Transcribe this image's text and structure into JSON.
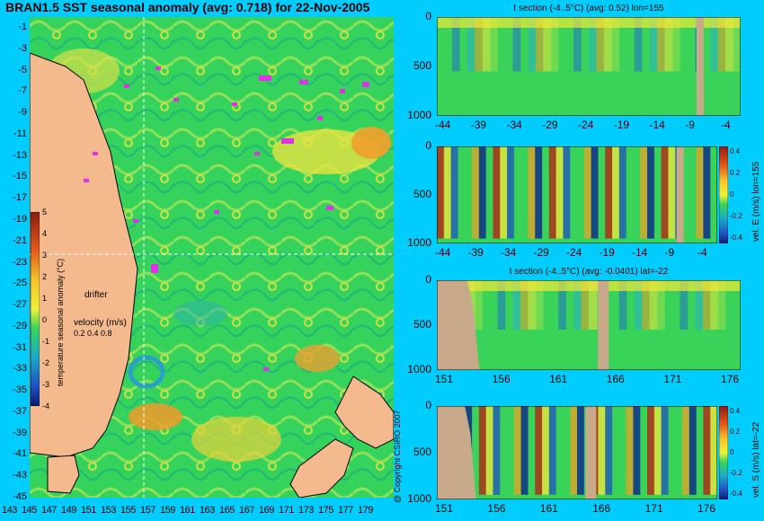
{
  "main_title": "BRAN1.5 SST seasonal anomaly (avg: 0.718) for 22-Nov-2005",
  "copyright": "@ Copyright CSIRO 2007",
  "map": {
    "lat_ticks": [
      "-1",
      "-3",
      "-5",
      "-7",
      "-9",
      "-11",
      "-13",
      "-15",
      "-17",
      "-19",
      "-21",
      "-23",
      "-25",
      "-27",
      "-29",
      "-31",
      "-33",
      "-35",
      "-37",
      "-39",
      "-41",
      "-43",
      "-45"
    ],
    "lon_ticks": [
      "143",
      "145",
      "147",
      "149",
      "151",
      "153",
      "155",
      "157",
      "159",
      "161",
      "163",
      "165",
      "167",
      "169",
      "171",
      "173",
      "175",
      "177",
      "179"
    ],
    "colorbar_label": "temperature seasonal anomaly (°C)",
    "colorbar_ticks": [
      "5",
      "4",
      "3",
      "2",
      "1",
      "0",
      "-1",
      "-2",
      "-3",
      "-4"
    ],
    "drifter_label": "drifter",
    "velocity_label": "velocity (m/s)",
    "velocity_scale": "0.2 0.4 0.8",
    "colors": {
      "land": "#f4b98c",
      "ocean": "#2fd35a",
      "warm": "#f3e63a",
      "hot": "#e77f1f",
      "cool": "#2aa0c8",
      "drifter": "#e030e8"
    }
  },
  "panels": [
    {
      "title": "t section (-4..5°C) (avg: 0.52) lon=155",
      "x_ticks": [
        "-44",
        "-39",
        "-34",
        "-29",
        "-24",
        "-19",
        "-14",
        "-9",
        "-4"
      ],
      "y_ticks": [
        "0",
        "500",
        "1000"
      ]
    },
    {
      "title": "",
      "side_label": "vel. E (m/s) lon=155",
      "x_ticks": [
        "-44",
        "-39",
        "-34",
        "-29",
        "-24",
        "-19",
        "-14",
        "-9",
        "-4"
      ],
      "y_ticks": [
        "0",
        "500",
        "1000"
      ],
      "cb_ticks": [
        "0.4",
        "0.2",
        "0",
        "-0.2",
        "-0.4"
      ]
    },
    {
      "title": "t section (-4..5°C) (avg: -0.0401) lat=-22",
      "x_ticks": [
        "151",
        "156",
        "161",
        "166",
        "171",
        "176"
      ],
      "y_ticks": [
        "0",
        "500",
        "1000"
      ]
    },
    {
      "title": "",
      "side_label": "vel. S (m/s) lat=-22",
      "x_ticks": [
        "151",
        "156",
        "161",
        "166",
        "171",
        "176"
      ],
      "y_ticks": [
        "0",
        "500",
        "1000"
      ],
      "cb_ticks": [
        "0.4",
        "0.2",
        "0",
        "-0.2",
        "-0.4"
      ]
    }
  ]
}
